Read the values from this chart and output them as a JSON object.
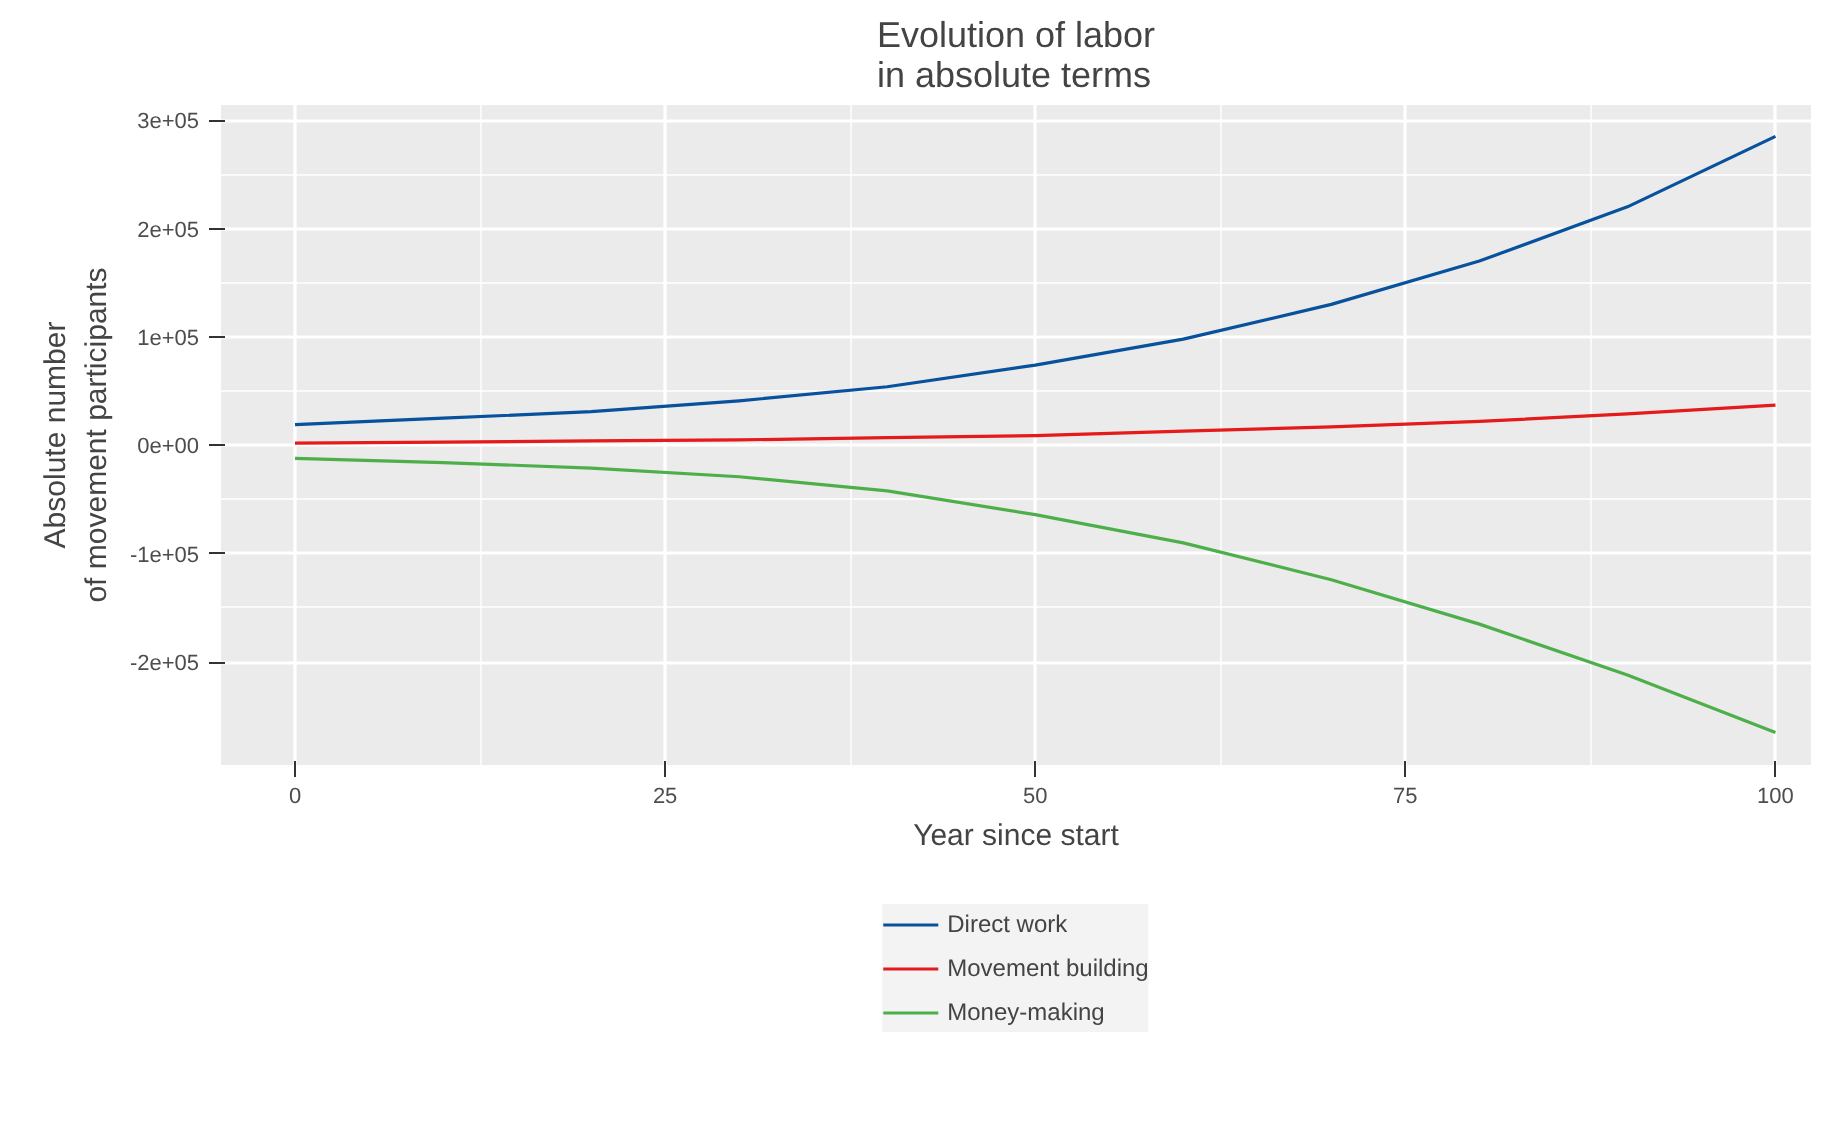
{
  "chart_data": {
    "type": "line",
    "title": "Evolution of labor\nin absolute terms",
    "xlabel": "Year since start",
    "ylabel": "Absolute number\nof movement participants",
    "x": [
      0,
      10,
      20,
      30,
      40,
      50,
      60,
      70,
      80,
      90,
      100
    ],
    "series": [
      {
        "name": "Direct work",
        "color": "#08519c",
        "values": [
          19000,
          25000,
          31000,
          41000,
          54000,
          74000,
          98000,
          130000,
          170000,
          220000,
          285000
        ]
      },
      {
        "name": "Movement building",
        "color": "#e41a1c",
        "values": [
          2000,
          3000,
          4000,
          5000,
          7000,
          9000,
          13000,
          17000,
          22000,
          29000,
          37000
        ]
      },
      {
        "name": "Money-making",
        "color": "#4daf4a",
        "values": [
          -12000,
          -16000,
          -21000,
          -29000,
          -42000,
          -64000,
          -90000,
          -124000,
          -165000,
          -212000,
          -265000
        ]
      }
    ],
    "xlim": [
      -5,
      102.4
    ],
    "ylim": [
      -295000,
      314000
    ],
    "xticks": [
      0,
      25,
      50,
      75,
      100
    ],
    "yticks": [
      {
        "value": -200000,
        "label": "-2e+05"
      },
      {
        "value": -100000,
        "label": "-1e+05"
      },
      {
        "value": 0,
        "label": "0e+00"
      },
      {
        "value": 100000,
        "label": "1e+05"
      },
      {
        "value": 200000,
        "label": "2e+05"
      },
      {
        "value": 300000,
        "label": "3e+05"
      }
    ],
    "grid": true,
    "legend": "bottom",
    "marker": "none",
    "line_style": "solid"
  }
}
